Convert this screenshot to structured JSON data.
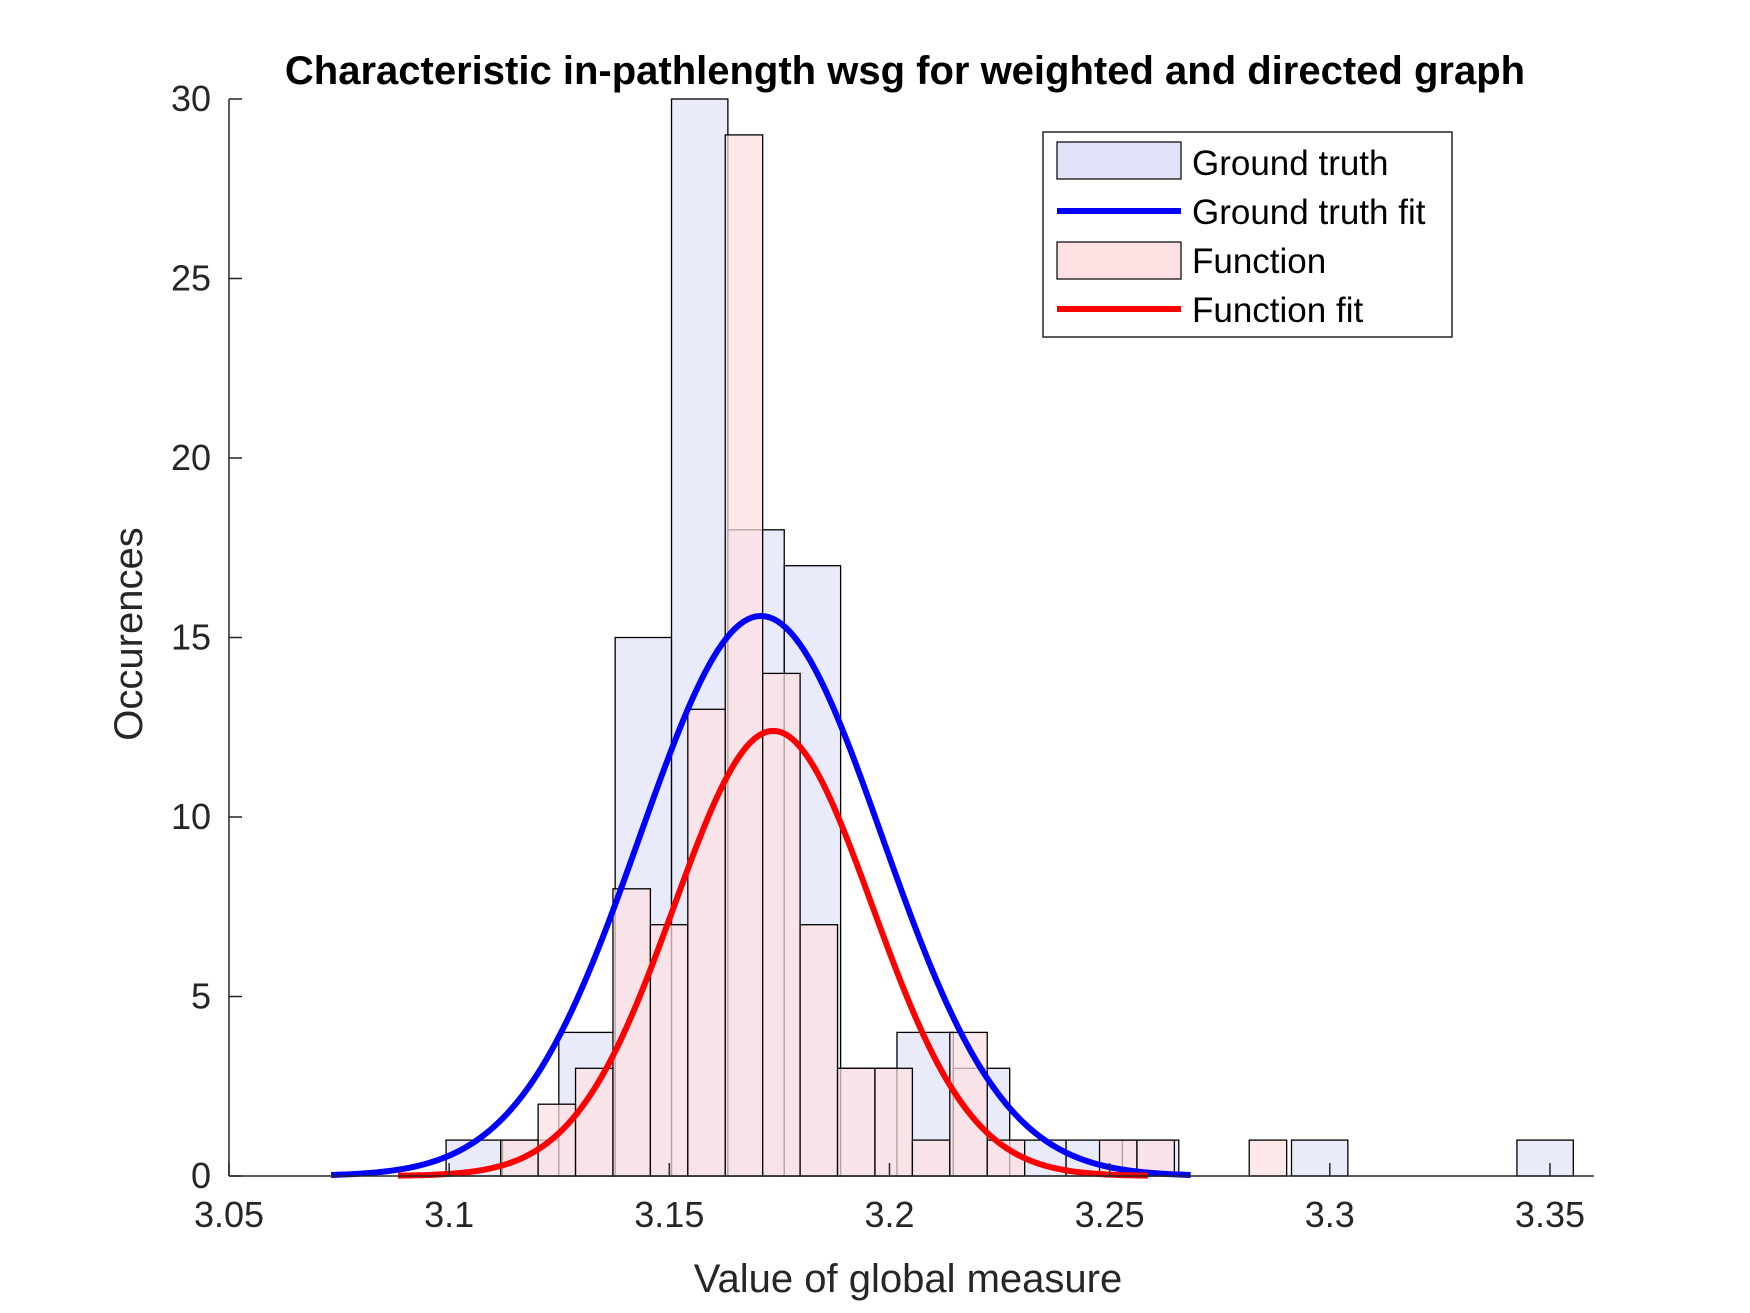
{
  "chart_data": {
    "type": "bar",
    "title": "Characteristic in-pathlength wsg for weighted and directed graph",
    "xlabel": "Value of global measure",
    "ylabel": "Occurences",
    "xlim": [
      3.05,
      3.36
    ],
    "ylim": [
      0,
      30
    ],
    "xticks": [
      3.05,
      3.1,
      3.15,
      3.2,
      3.25,
      3.3,
      3.35
    ],
    "xtick_labels": [
      "3.05",
      "3.1",
      "3.15",
      "3.2",
      "3.25",
      "3.3",
      "3.35"
    ],
    "yticks": [
      0,
      5,
      10,
      15,
      20,
      25,
      30
    ],
    "ytick_labels": [
      "0",
      "5",
      "10",
      "15",
      "20",
      "25",
      "30"
    ],
    "grid": false,
    "legend_position": "top-right",
    "series": [
      {
        "name": "Ground truth",
        "kind": "histogram",
        "color": "#e0e2f8",
        "bin_width": 0.0128,
        "bins": [
          {
            "left": 3.0993,
            "count": 1
          },
          {
            "left": 3.1121,
            "count": 1
          },
          {
            "left": 3.1249,
            "count": 4
          },
          {
            "left": 3.1377,
            "count": 15
          },
          {
            "left": 3.1505,
            "count": 30
          },
          {
            "left": 3.1633,
            "count": 18
          },
          {
            "left": 3.1761,
            "count": 17
          },
          {
            "left": 3.1889,
            "count": 3
          },
          {
            "left": 3.2017,
            "count": 4
          },
          {
            "left": 3.2145,
            "count": 3
          },
          {
            "left": 3.2273,
            "count": 1
          },
          {
            "left": 3.2401,
            "count": 1
          },
          {
            "left": 3.2529,
            "count": 1
          },
          {
            "left": 3.2913,
            "count": 1
          },
          {
            "left": 3.3425,
            "count": 1
          }
        ]
      },
      {
        "name": "Ground truth fit",
        "kind": "line",
        "color": "#0000ff",
        "mean": 3.1708,
        "sd": 0.0275,
        "peak": 15.6,
        "x_range": [
          3.0732,
          3.2684
        ]
      },
      {
        "name": "Function",
        "kind": "histogram",
        "color": "#fde0e2",
        "bin_width": 0.0085,
        "bins": [
          {
            "left": 3.1117,
            "count": 1
          },
          {
            "left": 3.1202,
            "count": 2
          },
          {
            "left": 3.1287,
            "count": 3
          },
          {
            "left": 3.1372,
            "count": 8
          },
          {
            "left": 3.1457,
            "count": 7
          },
          {
            "left": 3.1542,
            "count": 13
          },
          {
            "left": 3.1627,
            "count": 29
          },
          {
            "left": 3.1712,
            "count": 14
          },
          {
            "left": 3.1797,
            "count": 7
          },
          {
            "left": 3.1882,
            "count": 3
          },
          {
            "left": 3.1967,
            "count": 3
          },
          {
            "left": 3.2052,
            "count": 1
          },
          {
            "left": 3.2137,
            "count": 4
          },
          {
            "left": 3.2222,
            "count": 1
          },
          {
            "left": 3.2477,
            "count": 1
          },
          {
            "left": 3.2562,
            "count": 1
          },
          {
            "left": 3.2817,
            "count": 1
          }
        ]
      },
      {
        "name": "Function fit",
        "kind": "line",
        "color": "#ff0000",
        "mean": 3.1736,
        "sd": 0.0225,
        "peak": 12.4,
        "x_range": [
          3.0884,
          3.2587
        ]
      }
    ],
    "legend_entries": [
      "Ground truth",
      "Ground truth fit",
      "Function",
      "Function fit"
    ]
  }
}
